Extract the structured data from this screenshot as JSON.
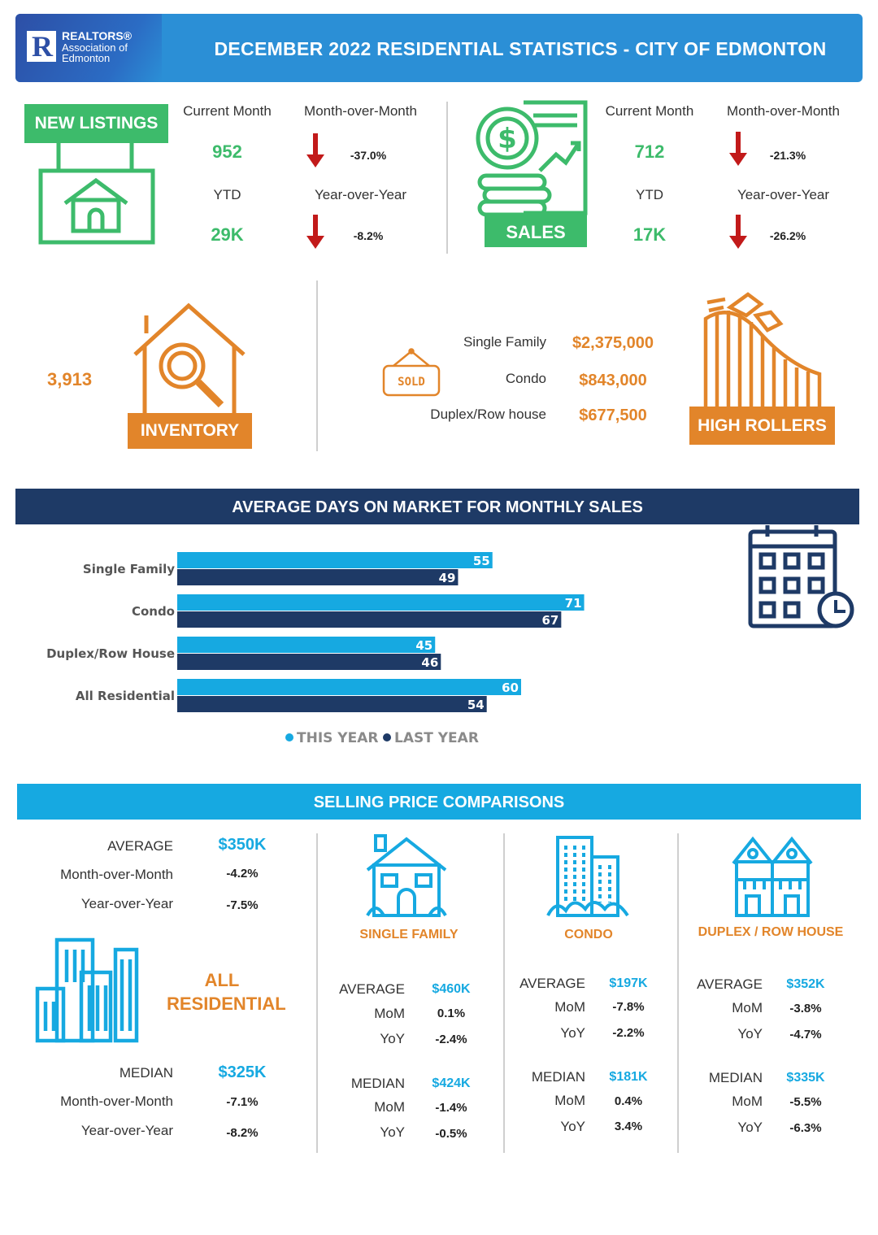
{
  "header": {
    "logo_line1": "REALTORS®",
    "logo_line2": "Association of",
    "logo_line3": "Edmonton",
    "title": "DECEMBER 2022 RESIDENTIAL STATISTICS - CITY OF EDMONTON"
  },
  "new_listings": {
    "label": "NEW  LISTINGS",
    "current_month_label": "Current Month",
    "current_month_value": "952",
    "mom_label": "Month-over-Month",
    "mom_value": "-37.0%",
    "ytd_label": "YTD",
    "ytd_value": "29K",
    "yoy_label": "Year-over-Year",
    "yoy_value": "-8.2%"
  },
  "sales": {
    "label": "SALES",
    "current_month_label": "Current Month",
    "current_month_value": "712",
    "mom_label": "Month-over-Month",
    "mom_value": "-21.3%",
    "ytd_label": "YTD",
    "ytd_value": "17K",
    "yoy_label": "Year-over-Year",
    "yoy_value": "-26.2%"
  },
  "inventory": {
    "value": "3,913",
    "label": "INVENTORY"
  },
  "high_rollers": {
    "sold_sign": "SOLD",
    "label": "HIGH ROLLERS",
    "items": [
      {
        "type": "Single Family",
        "price": "$2,375,000"
      },
      {
        "type": "Condo",
        "price": "$843,000"
      },
      {
        "type": "Duplex/Row house",
        "price": "$677,500"
      }
    ]
  },
  "days_on_market": {
    "title": "AVERAGE DAYS ON MARKET FOR MONTHLY SALES"
  },
  "chart_data": {
    "type": "bar",
    "orientation": "horizontal",
    "title": "AVERAGE DAYS ON MARKET FOR MONTHLY SALES",
    "categories": [
      "Single Family",
      "Condo",
      "Duplex/Row House",
      "All Residential"
    ],
    "series": [
      {
        "name": "THIS YEAR",
        "color": "#16a9e1",
        "values": [
          55,
          71,
          45,
          60
        ]
      },
      {
        "name": "LAST YEAR",
        "color": "#1e3a66",
        "values": [
          49,
          67,
          46,
          54
        ]
      }
    ],
    "legend_position": "bottom",
    "grid": false,
    "xlim": [
      0,
      80
    ]
  },
  "selling_prices": {
    "title": "SELLING PRICE COMPARISONS",
    "all_residential": {
      "label_line1": "ALL",
      "label_line2": "RESIDENTIAL",
      "average_label": "AVERAGE",
      "average_value": "$350K",
      "avg_mom_label": "Month-over-Month",
      "avg_mom_value": "-4.2%",
      "avg_yoy_label": "Year-over-Year",
      "avg_yoy_value": "-7.5%",
      "median_label": "MEDIAN",
      "median_value": "$325K",
      "med_mom_label": "Month-over-Month",
      "med_mom_value": "-7.1%",
      "med_yoy_label": "Year-over-Year",
      "med_yoy_value": "-8.2%"
    },
    "single_family": {
      "label": "SINGLE FAMILY",
      "average_label": "AVERAGE",
      "average_value": "$460K",
      "avg_mom_label": "MoM",
      "avg_mom_value": "0.1%",
      "avg_yoy_label": "YoY",
      "avg_yoy_value": "-2.4%",
      "median_label": "MEDIAN",
      "median_value": "$424K",
      "med_mom_label": "MoM",
      "med_mom_value": "-1.4%",
      "med_yoy_label": "YoY",
      "med_yoy_value": "-0.5%"
    },
    "condo": {
      "label": "CONDO",
      "average_label": "AVERAGE",
      "average_value": "$197K",
      "avg_mom_label": "MoM",
      "avg_mom_value": "-7.8%",
      "avg_yoy_label": "YoY",
      "avg_yoy_value": "-2.2%",
      "median_label": "MEDIAN",
      "median_value": "$181K",
      "med_mom_label": "MoM",
      "med_mom_value": "0.4%",
      "med_yoy_label": "YoY",
      "med_yoy_value": "3.4%"
    },
    "duplex": {
      "label": "DUPLEX / ROW HOUSE",
      "average_label": "AVERAGE",
      "average_value": "$352K",
      "avg_mom_label": "MoM",
      "avg_mom_value": "-3.8%",
      "avg_yoy_label": "YoY",
      "avg_yoy_value": "-4.7%",
      "median_label": "MEDIAN",
      "median_value": "$335K",
      "med_mom_label": "MoM",
      "med_mom_value": "-5.5%",
      "med_yoy_label": "YoY",
      "med_yoy_value": "-6.3%"
    }
  },
  "colors": {
    "header_blue": "#2b8fd6",
    "green": "#3dbb6b",
    "orange": "#e2852a",
    "navy": "#1e3a66",
    "sky": "#16a9e1",
    "arrow_red": "#c21a1a"
  }
}
